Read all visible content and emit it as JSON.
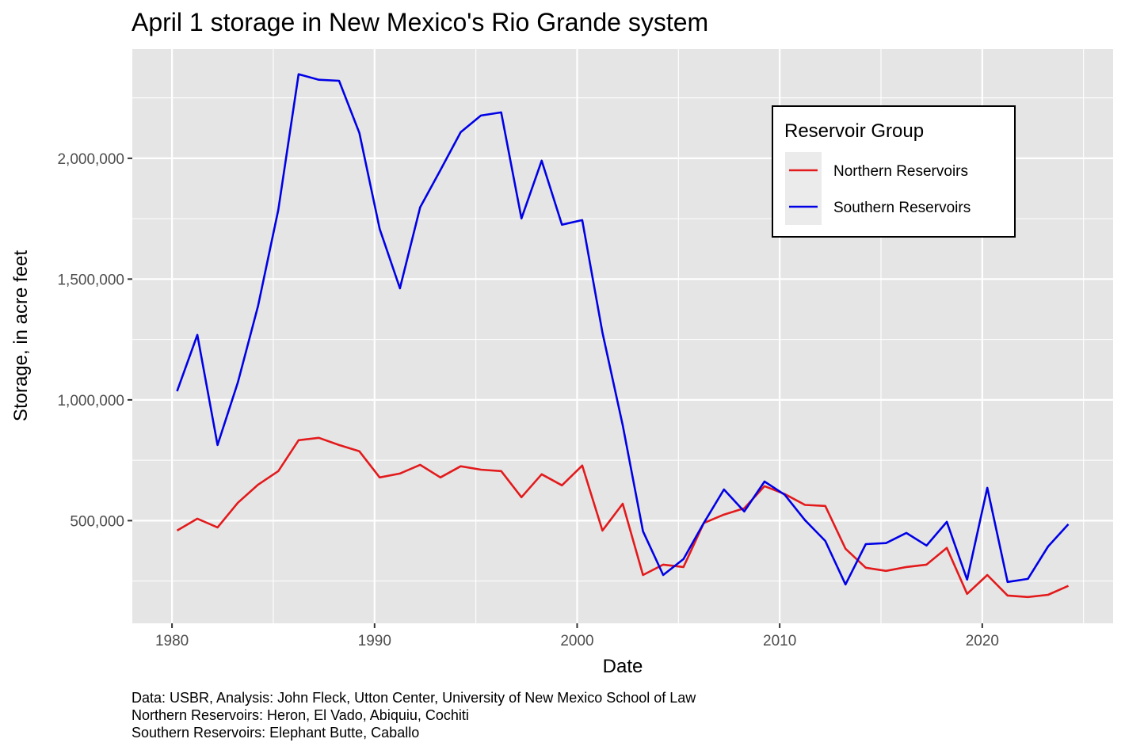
{
  "chart_data": {
    "type": "line",
    "title": "April 1 storage in New Mexico's Rio Grande system",
    "xlabel": "Date",
    "ylabel": "Storage, in acre feet",
    "xlim": [
      1978.04,
      2026.46
    ],
    "ylim": [
      75000,
      2452000
    ],
    "x_ticks": [
      1980,
      1990,
      2000,
      2010,
      2020
    ],
    "x_tick_labels": [
      "1980",
      "1990",
      "2000",
      "2010",
      "2020"
    ],
    "x_minor": [
      1985,
      1995,
      2005,
      2015,
      2025
    ],
    "y_ticks": [
      500000,
      1000000,
      1500000,
      2000000
    ],
    "y_tick_labels": [
      "500,000",
      "1,000,000",
      "1,500,000",
      "2,000,000"
    ],
    "y_minor": [
      250000,
      750000,
      1250000,
      1750000,
      2250000
    ],
    "grid": true,
    "legend": {
      "title": "Reservoir Group",
      "position": "top-right"
    },
    "x": [
      1980,
      1981,
      1982,
      1983,
      1984,
      1985,
      1986,
      1987,
      1988,
      1989,
      1990,
      1991,
      1992,
      1993,
      1994,
      1995,
      1996,
      1997,
      1998,
      1999,
      2000,
      2001,
      2002,
      2003,
      2004,
      2005,
      2006,
      2007,
      2008,
      2009,
      2010,
      2011,
      2012,
      2013,
      2014,
      2015,
      2016,
      2017,
      2018,
      2019,
      2020,
      2021,
      2022,
      2023,
      2024
    ],
    "x_offset_years": 0.25,
    "series": [
      {
        "name": "Northern Reservoirs",
        "color": "#e31a1c",
        "values": [
          459000,
          508000,
          472000,
          574000,
          649000,
          705000,
          833000,
          843000,
          813000,
          787000,
          679000,
          695000,
          731000,
          679000,
          725000,
          711000,
          705000,
          597000,
          692000,
          646000,
          728000,
          459000,
          570000,
          275000,
          318000,
          308000,
          490000,
          525000,
          551000,
          643000,
          610000,
          565000,
          561000,
          384000,
          305000,
          292000,
          308000,
          318000,
          387000,
          197000,
          275000,
          190000,
          184000,
          193000,
          230000
        ]
      },
      {
        "name": "Southern Reservoirs",
        "color": "#0000e6",
        "values": [
          1036000,
          1269000,
          813000,
          1072000,
          1390000,
          1787000,
          2348000,
          2325000,
          2321000,
          2105000,
          1708000,
          1462000,
          1797000,
          1951000,
          2108000,
          2177000,
          2190000,
          1751000,
          1990000,
          1725000,
          1744000,
          1279000,
          895000,
          456000,
          275000,
          341000,
          490000,
          629000,
          538000,
          662000,
          607000,
          502000,
          416000,
          236000,
          403000,
          407000,
          449000,
          397000,
          495000,
          256000,
          636000,
          246000,
          259000,
          393000,
          485000
        ]
      }
    ],
    "caption": [
      "Data: USBR, Analysis: John Fleck, Utton Center, University of New Mexico School of Law",
      "Northern Reservoirs: Heron, El Vado, Abiquiu, Cochiti",
      "Southern Reservoirs: Elephant Butte, Caballo"
    ]
  }
}
